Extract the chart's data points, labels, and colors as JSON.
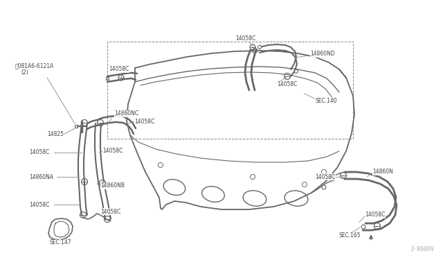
{
  "bg_color": "#ffffff",
  "line_color": "#666666",
  "text_color": "#444444",
  "dashed_color": "#888888",
  "watermark": "J·8000V",
  "figsize": [
    6.4,
    3.72
  ],
  "dpi": 100,
  "labels": {
    "bolt": "⒲081A6-6121A",
    "bolt2": "（2）",
    "14058C": "14058C",
    "14825": "14825",
    "14860NC": "14860NC",
    "14860NA": "14860NA",
    "14860NB": "14860NB",
    "14860ND": "14860ND",
    "14860N": "14860N",
    "SEC140": "SEC.140",
    "SEC147": "SEC.147",
    "SEC165": "SEC.165"
  }
}
